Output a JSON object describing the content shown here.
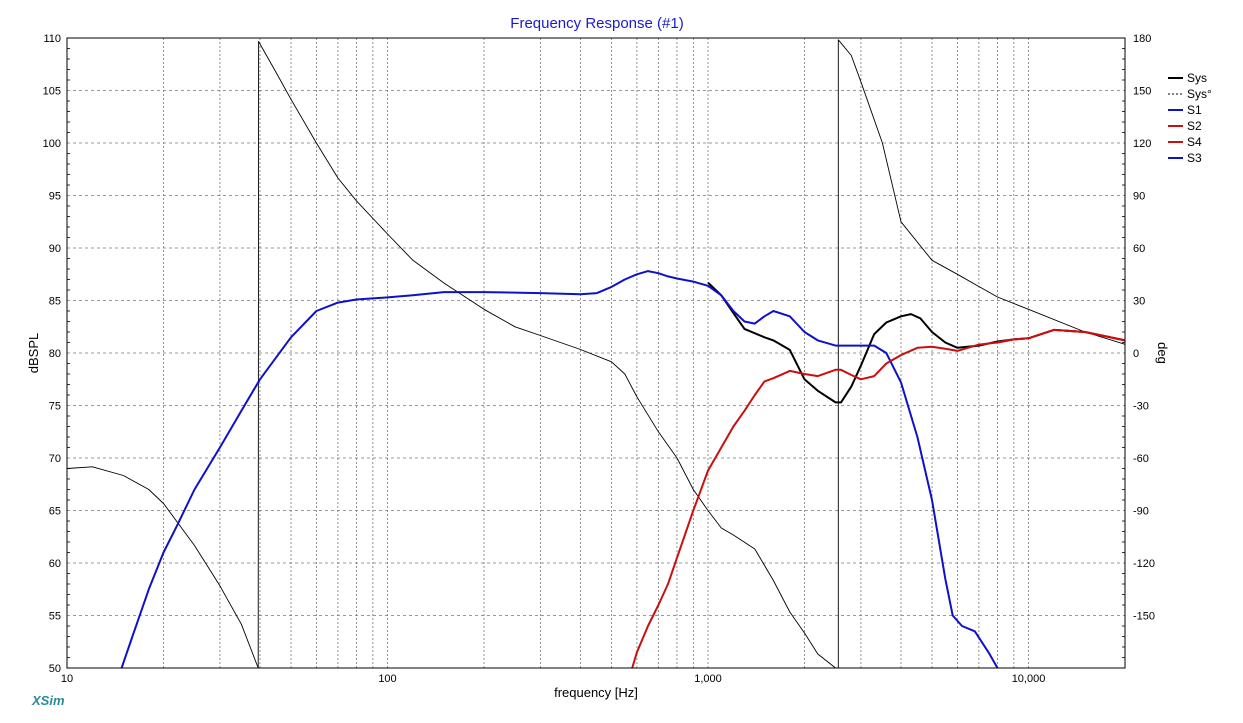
{
  "chart_data": {
    "type": "line",
    "title": "Frequency Response (#1)",
    "xlabel": "frequency [Hz]",
    "ylabel": "dBSPL",
    "y2label": "deg",
    "xscale": "log",
    "xlim": [
      10,
      20000
    ],
    "ylim": [
      50,
      110
    ],
    "y2lim": [
      -180,
      180
    ],
    "x_ticks": [
      10,
      100,
      1000,
      10000
    ],
    "x_tick_labels": [
      "10",
      "100",
      "1,000",
      "10,000"
    ],
    "y_ticks": [
      50,
      55,
      60,
      65,
      70,
      75,
      80,
      85,
      90,
      95,
      100,
      105,
      110
    ],
    "y2_ticks": [
      -150,
      -120,
      -90,
      -60,
      -30,
      0,
      30,
      60,
      90,
      120,
      150,
      180
    ],
    "grid": true,
    "legend_position": "top-right",
    "brand": "XSim",
    "series": [
      {
        "name": "Sys",
        "color": "#000000",
        "dash": "solid",
        "axis": "left",
        "x": [
          1000,
          1100,
          1200,
          1300,
          1500,
          1600,
          1800,
          2000,
          2200,
          2500,
          2600,
          2800,
          3000,
          3300,
          3600,
          4000,
          4300,
          4600,
          5000,
          5500,
          6000,
          7000,
          8000,
          9000,
          10000,
          12000,
          15000,
          20000
        ],
        "y": [
          86.7,
          85.5,
          83.8,
          82.3,
          81.5,
          81.2,
          80.3,
          77.5,
          76.4,
          75.3,
          75.3,
          76.8,
          78.8,
          81.8,
          82.9,
          83.5,
          83.7,
          83.3,
          82.0,
          81.0,
          80.5,
          80.7,
          81.1,
          81.3,
          81.4,
          82.2,
          82.0,
          81.2
        ]
      },
      {
        "name": "Sys°",
        "color": "#000000",
        "dash": "dashed",
        "axis": "right",
        "x": [
          10,
          12,
          15,
          18,
          20,
          25,
          30,
          35,
          39.5,
          39.6,
          45,
          50,
          60,
          70,
          80,
          100,
          120,
          150,
          200,
          250,
          300,
          400,
          500,
          550,
          600,
          700,
          800,
          900,
          1000,
          1100,
          1200,
          1400,
          1600,
          1800,
          2000,
          2200,
          2500,
          2549,
          2550,
          2800,
          3000,
          3500,
          4000,
          5000,
          6000,
          7000,
          8000,
          10000,
          15000,
          20000
        ],
        "y": [
          -66,
          -65,
          -70,
          -78,
          -86,
          -110,
          -133,
          -155,
          -180,
          178,
          160,
          145,
          120,
          100,
          87,
          68,
          53,
          40,
          25,
          15,
          10,
          2,
          -5,
          -12,
          -25,
          -45,
          -60,
          -78,
          -90,
          -100,
          -104,
          -112,
          -130,
          -148,
          -160,
          -172,
          -180,
          -180,
          179,
          170,
          155,
          120,
          75,
          53,
          45,
          38,
          32,
          25,
          12,
          5
        ]
      },
      {
        "name": "S1",
        "color": "#1010c8",
        "dash": "solid",
        "axis": "left",
        "x": [
          14.8,
          16,
          18,
          20,
          22,
          25,
          30,
          35,
          40,
          50,
          60,
          70,
          80,
          90,
          100,
          120,
          150,
          200,
          300,
          400,
          450,
          500,
          550,
          600,
          650,
          700,
          750,
          800,
          900,
          1000,
          1100,
          1200,
          1300,
          1400,
          1500,
          1600,
          1800,
          2000,
          2200,
          2500,
          2800,
          3000,
          3300,
          3600,
          4000,
          4500,
          5000,
          5500,
          5800,
          6200,
          6800,
          7500,
          8000
        ],
        "y": [
          50,
          53,
          57.5,
          61,
          63.5,
          67,
          71,
          74.5,
          77.5,
          81.5,
          84,
          84.8,
          85.1,
          85.2,
          85.3,
          85.5,
          85.8,
          85.8,
          85.7,
          85.6,
          85.7,
          86.3,
          87,
          87.5,
          87.8,
          87.6,
          87.3,
          87.1,
          86.8,
          86.4,
          85.5,
          84,
          83,
          82.8,
          83.5,
          84,
          83.5,
          82,
          81.2,
          80.7,
          80.7,
          80.7,
          80.7,
          80.0,
          77.2,
          72.0,
          66.0,
          58.5,
          55.0,
          54.0,
          53.5,
          51.5,
          50
        ]
      },
      {
        "name": "S2",
        "color": "#c81010",
        "dash": "solid",
        "axis": "left",
        "x": [
          580,
          600,
          650,
          700,
          750,
          800,
          900,
          1000,
          1100,
          1200,
          1300,
          1400,
          1500,
          1600,
          1800,
          2000,
          2200,
          2500,
          2600,
          2800,
          3000,
          3300,
          3600,
          4000,
          4500,
          5000,
          5500,
          6000,
          7000,
          8000,
          9000,
          10000,
          12000,
          15000,
          20000
        ],
        "y": [
          50,
          51.5,
          54,
          56,
          58,
          60.5,
          65,
          68.8,
          71,
          73,
          74.5,
          76,
          77.3,
          77.6,
          78.3,
          78.0,
          77.8,
          78.4,
          78.4,
          77.9,
          77.5,
          77.8,
          79.0,
          79.8,
          80.5,
          80.6,
          80.4,
          80.2,
          80.8,
          81.0,
          81.3,
          81.4,
          82.2,
          82.0,
          81.2
        ]
      },
      {
        "name": "S4",
        "color": "#c81010",
        "dash": "solid",
        "axis": "left",
        "x": [
          8000,
          9000,
          10000,
          12000,
          15000,
          20000
        ],
        "y": [
          81.0,
          81.3,
          81.4,
          82.2,
          82.0,
          81.2
        ]
      },
      {
        "name": "S3",
        "color": "#1010c8",
        "dash": "solid",
        "axis": "left",
        "x": [],
        "y": []
      }
    ]
  }
}
